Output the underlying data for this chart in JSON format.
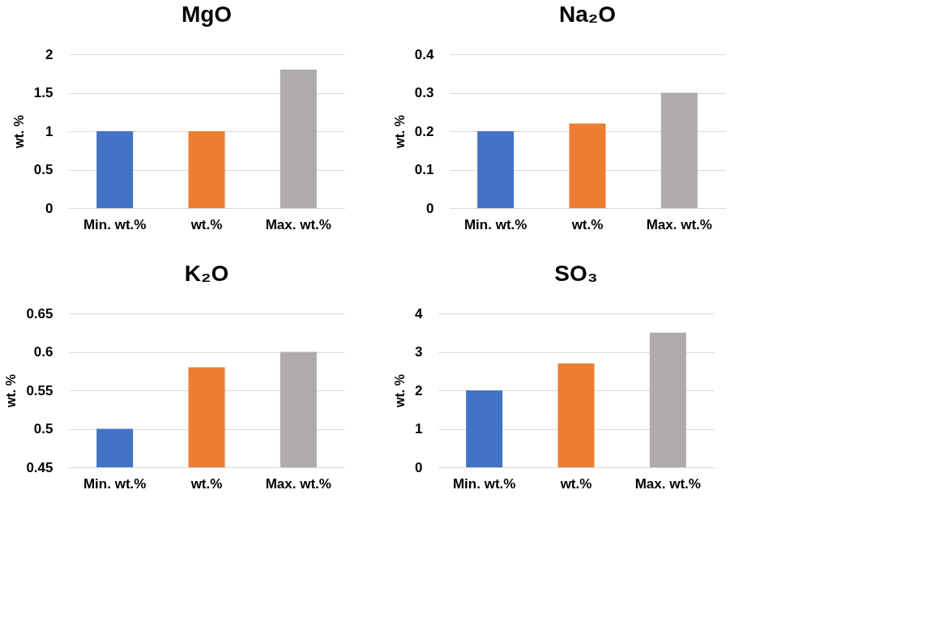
{
  "chart_data": [
    {
      "type": "bar",
      "title": "MgO",
      "ylabel": "wt. %",
      "categories": [
        "Min. wt.%",
        "wt.%",
        "Max. wt.%"
      ],
      "values": [
        1,
        1,
        1.8
      ],
      "colors": [
        "#4472c4",
        "#ed7d31",
        "#afabab"
      ],
      "ylim": [
        0,
        2
      ],
      "yticks": [
        0,
        0.5,
        1,
        1.5,
        2
      ],
      "grid": "y"
    },
    {
      "type": "bar",
      "title": "Na₂O",
      "ylabel": "wt. %",
      "categories": [
        "Min. wt.%",
        "wt.%",
        "Max. wt.%"
      ],
      "values": [
        0.2,
        0.22,
        0.3
      ],
      "colors": [
        "#4472c4",
        "#ed7d31",
        "#afabab"
      ],
      "ylim": [
        0,
        0.4
      ],
      "yticks": [
        0,
        0.1,
        0.2,
        0.3,
        0.4
      ],
      "grid": "y"
    },
    {
      "type": "bar",
      "title": "K₂O",
      "ylabel": "wt. %",
      "categories": [
        "Min. wt.%",
        "wt.%",
        "Max. wt.%"
      ],
      "values": [
        0.5,
        0.58,
        0.6
      ],
      "colors": [
        "#4472c4",
        "#ed7d31",
        "#afabab"
      ],
      "ylim": [
        0.45,
        0.65
      ],
      "yticks": [
        0.45,
        0.5,
        0.55,
        0.6,
        0.65
      ],
      "grid": "y"
    },
    {
      "type": "bar",
      "title": "SO₃",
      "ylabel": "wt. %",
      "categories": [
        "Min. wt.%",
        "wt.%",
        "Max. wt.%"
      ],
      "values": [
        2,
        2.7,
        3.5
      ],
      "colors": [
        "#4472c4",
        "#ed7d31",
        "#afabab"
      ],
      "ylim": [
        0,
        4
      ],
      "yticks": [
        0,
        1,
        2,
        3,
        4
      ],
      "grid": "y"
    }
  ]
}
